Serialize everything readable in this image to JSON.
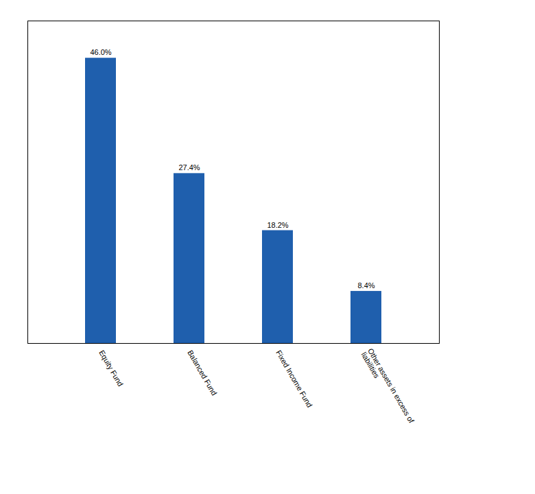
{
  "chart_data": {
    "type": "bar",
    "categories": [
      "Equity Fund",
      "Balanced Fund",
      "Fixed Income Fund",
      "Other assets in excess of\nliabilities"
    ],
    "values": [
      46.0,
      27.4,
      18.2,
      8.4
    ],
    "value_labels": [
      "46.0%",
      "27.4%",
      "18.2%",
      "8.4%"
    ],
    "data_labels": true,
    "color": "#1F5FAD",
    "ylim": [
      0,
      52
    ],
    "tick_labels": "x"
  }
}
